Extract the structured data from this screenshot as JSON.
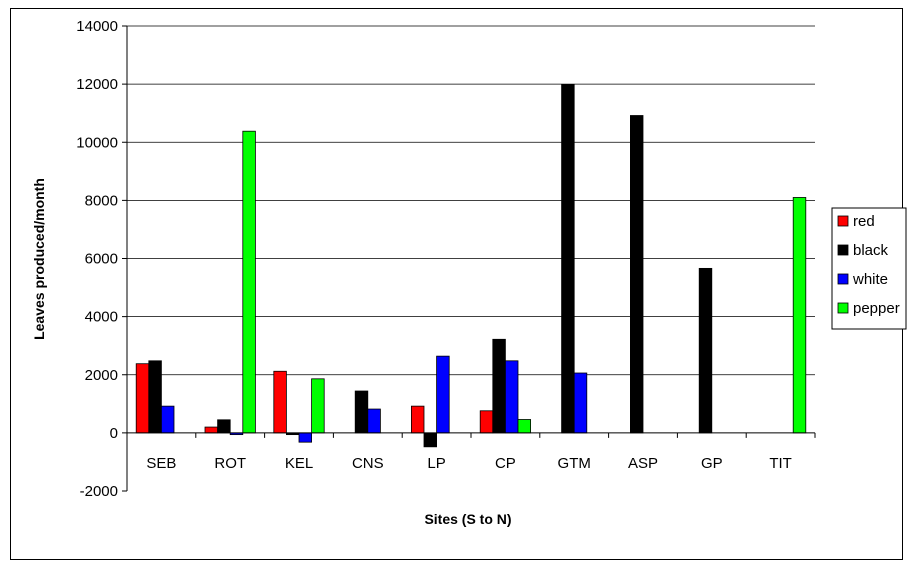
{
  "chart_data": {
    "type": "bar",
    "title": "",
    "xlabel": "Sites (S to N)",
    "ylabel": "Leaves produced/month",
    "ylim": [
      -2000,
      14000
    ],
    "yticks": [
      -2000,
      0,
      2000,
      4000,
      6000,
      8000,
      10000,
      12000,
      14000
    ],
    "grid": true,
    "legend_position": "right",
    "categories": [
      "SEB",
      "ROT",
      "KEL",
      "CNS",
      "LP",
      "CP",
      "GTM",
      "ASP",
      "GP",
      "TIT"
    ],
    "series": [
      {
        "name": "red",
        "color": "#ff0000",
        "values": [
          2380,
          200,
          2120,
          0,
          920,
          760,
          0,
          0,
          0,
          0
        ]
      },
      {
        "name": "black",
        "color": "#000000",
        "values": [
          2480,
          450,
          -60,
          1440,
          -480,
          3220,
          11980,
          10920,
          5660,
          0
        ]
      },
      {
        "name": "white",
        "color": "#0000ff",
        "values": [
          920,
          -60,
          -320,
          820,
          2640,
          2480,
          2060,
          0,
          0,
          0
        ]
      },
      {
        "name": "pepper",
        "color": "#00ff00",
        "values": [
          0,
          10380,
          1860,
          0,
          0,
          460,
          0,
          0,
          0,
          8100
        ]
      }
    ]
  }
}
